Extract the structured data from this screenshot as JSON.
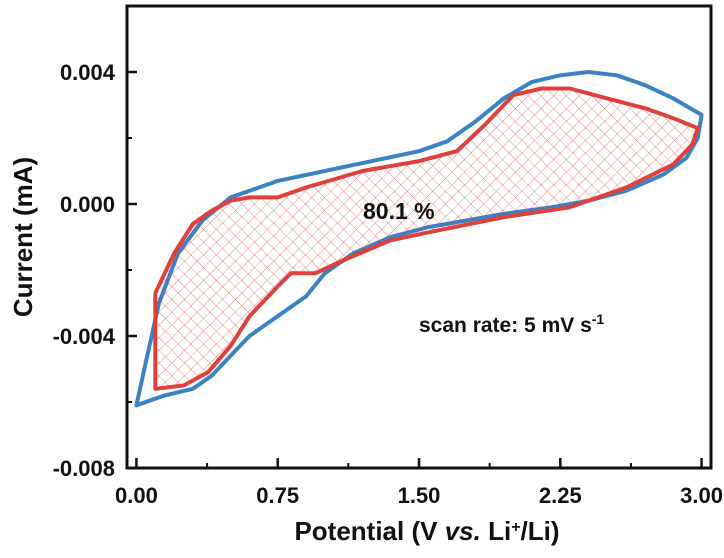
{
  "chart_data": {
    "type": "line",
    "xlabel": {
      "main": "Potential (",
      "mid": "V ",
      "italic": "vs.",
      "tail": " Li",
      "sup": "+",
      "end": "/Li)"
    },
    "ylabel": "Current (mA)",
    "xlim": [
      -0.05,
      3.05
    ],
    "ylim": [
      -0.008,
      0.006
    ],
    "x_ticks": [
      0.0,
      0.75,
      1.5,
      2.25,
      3.0
    ],
    "x_tick_labels": [
      "0.00",
      "0.75",
      "1.50",
      "2.25",
      "3.00"
    ],
    "y_ticks": [
      -0.008,
      -0.004,
      0.0,
      0.004
    ],
    "y_tick_labels": [
      "-0.008",
      "-0.004",
      "0.000",
      "0.004"
    ],
    "grid": false,
    "annotations": {
      "percentage": "80.1 %",
      "scan_rate": {
        "main": "scan rate: 5 mV s",
        "sup": "-1"
      }
    },
    "series": [
      {
        "color": "#3b82c4",
        "fill": false,
        "points": [
          [
            0.0,
            -0.0061
          ],
          [
            0.05,
            -0.0048
          ],
          [
            0.12,
            -0.003
          ],
          [
            0.22,
            -0.0015
          ],
          [
            0.35,
            -0.0005
          ],
          [
            0.5,
            0.0002
          ],
          [
            0.75,
            0.0007
          ],
          [
            1.0,
            0.001
          ],
          [
            1.25,
            0.0013
          ],
          [
            1.5,
            0.0016
          ],
          [
            1.65,
            0.0019
          ],
          [
            1.8,
            0.0025
          ],
          [
            1.95,
            0.0032
          ],
          [
            2.1,
            0.0037
          ],
          [
            2.25,
            0.0039
          ],
          [
            2.4,
            0.004
          ],
          [
            2.55,
            0.0039
          ],
          [
            2.7,
            0.0036
          ],
          [
            2.85,
            0.0032
          ],
          [
            3.0,
            0.0027
          ],
          [
            2.98,
            0.002
          ],
          [
            2.92,
            0.0014
          ],
          [
            2.8,
            0.0009
          ],
          [
            2.6,
            0.0004
          ],
          [
            2.4,
            0.0001
          ],
          [
            2.2,
            -0.0001
          ],
          [
            1.95,
            -0.0003
          ],
          [
            1.75,
            -0.0005
          ],
          [
            1.55,
            -0.0007
          ],
          [
            1.35,
            -0.001
          ],
          [
            1.15,
            -0.0015
          ],
          [
            1.0,
            -0.0021
          ],
          [
            0.9,
            -0.0028
          ],
          [
            0.8,
            -0.0032
          ],
          [
            0.7,
            -0.0036
          ],
          [
            0.6,
            -0.004
          ],
          [
            0.5,
            -0.0046
          ],
          [
            0.4,
            -0.0052
          ],
          [
            0.3,
            -0.0056
          ],
          [
            0.15,
            -0.0058
          ],
          [
            0.0,
            -0.0061
          ]
        ]
      },
      {
        "color": "#e0403c",
        "fill": true,
        "points": [
          [
            0.1,
            -0.0027
          ],
          [
            0.2,
            -0.0015
          ],
          [
            0.3,
            -0.0006
          ],
          [
            0.4,
            -0.0002
          ],
          [
            0.5,
            0.0001
          ],
          [
            0.6,
            0.0002
          ],
          [
            0.75,
            0.0002
          ],
          [
            0.9,
            0.0005
          ],
          [
            1.2,
            0.001
          ],
          [
            1.5,
            0.0013
          ],
          [
            1.7,
            0.0016
          ],
          [
            1.85,
            0.0024
          ],
          [
            2.0,
            0.0033
          ],
          [
            2.15,
            0.0035
          ],
          [
            2.3,
            0.0035
          ],
          [
            2.5,
            0.0032
          ],
          [
            2.7,
            0.0029
          ],
          [
            2.85,
            0.0026
          ],
          [
            2.98,
            0.0023
          ],
          [
            2.95,
            0.0018
          ],
          [
            2.85,
            0.0012
          ],
          [
            2.6,
            0.0005
          ],
          [
            2.3,
            -0.0001
          ],
          [
            1.95,
            -0.0004
          ],
          [
            1.6,
            -0.0008
          ],
          [
            1.35,
            -0.0011
          ],
          [
            1.1,
            -0.0017
          ],
          [
            0.95,
            -0.0021
          ],
          [
            0.82,
            -0.0021
          ],
          [
            0.75,
            -0.0025
          ],
          [
            0.6,
            -0.0034
          ],
          [
            0.5,
            -0.0043
          ],
          [
            0.38,
            -0.0051
          ],
          [
            0.25,
            -0.0055
          ],
          [
            0.1,
            -0.0056
          ],
          [
            0.1,
            -0.0027
          ]
        ]
      }
    ]
  }
}
